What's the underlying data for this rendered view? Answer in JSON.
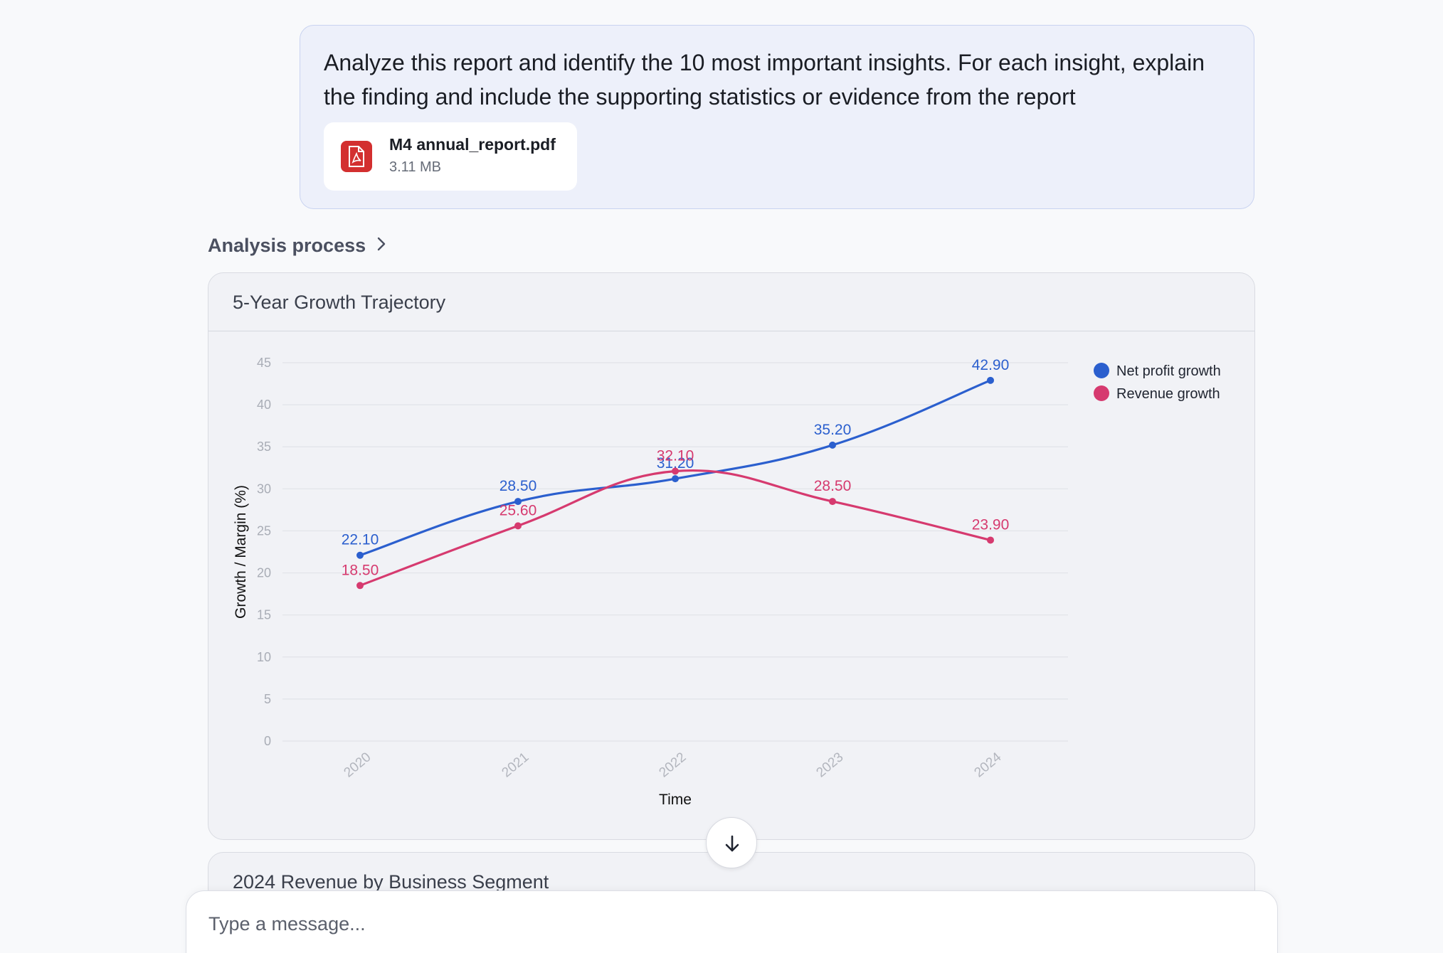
{
  "user_message": {
    "text": "Analyze this report and identify the 10 most important insights. For each insight, explain the finding and include the supporting statistics or evidence from the report",
    "attachment": {
      "name": "M4 annual_report.pdf",
      "size": "3.11 MB",
      "icon": "pdf-file-icon"
    }
  },
  "analysis_process": {
    "label": "Analysis process",
    "icon": "chevron-right-icon"
  },
  "charts": [
    {
      "title": "5-Year Growth Trajectory"
    },
    {
      "title": "2024 Revenue by Business Segment"
    }
  ],
  "chart_data": {
    "type": "line",
    "title": "5-Year Growth Trajectory",
    "xlabel": "Time",
    "ylabel": "Growth / Margin (%)",
    "categories": [
      "2020",
      "2021",
      "2022",
      "2023",
      "2024"
    ],
    "ylim": [
      0,
      45
    ],
    "yticks": [
      "0",
      "5",
      "10",
      "15",
      "20",
      "25",
      "30",
      "35",
      "40",
      "45"
    ],
    "grid": true,
    "legend_position": "top-right",
    "series": [
      {
        "name": "Net profit growth",
        "color": "#2b5fce",
        "values": [
          22.1,
          28.5,
          31.2,
          35.2,
          42.9
        ],
        "labels": [
          "22.10",
          "28.50",
          "31.20",
          "35.20",
          "42.90"
        ]
      },
      {
        "name": "Revenue growth",
        "color": "#d63a6f",
        "values": [
          18.5,
          25.6,
          32.1,
          28.5,
          23.9
        ],
        "labels": [
          "18.50",
          "25.60",
          "32.10",
          "28.50",
          "23.90"
        ]
      }
    ]
  },
  "scroll_button": {
    "icon": "arrow-down-icon"
  },
  "composer": {
    "placeholder": "Type a message..."
  }
}
